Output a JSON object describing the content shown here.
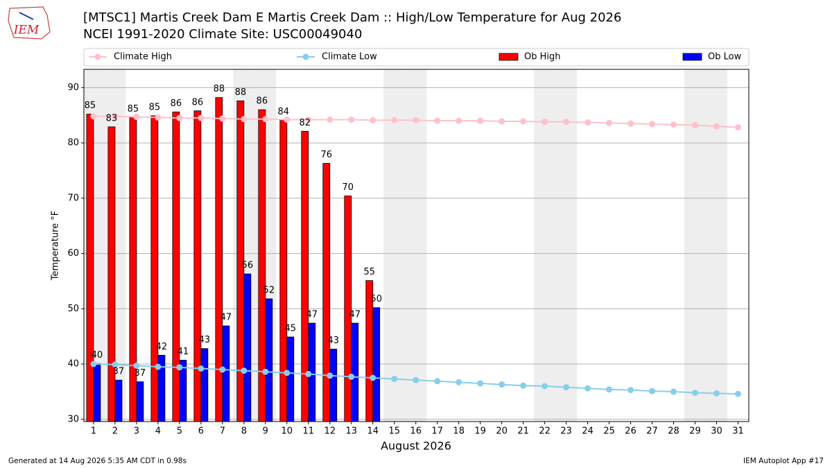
{
  "logo_text": "IEM",
  "footer_left": "Generated at 14 Aug 2026 5:35 AM CDT in 0.98s",
  "footer_right": "IEM Autoplot App #17",
  "chart_data": {
    "type": "bar_line",
    "title": "[MTSC1] Martis Creek Dam  E Martis Creek Dam :: High/Low Temperature for Aug 2026",
    "subtitle": "NCEI 1991-2020 Climate Site: USC00049040",
    "xlabel": "August 2026",
    "ylabel": "Temperature °F",
    "xlim": [
      0.55,
      31.5
    ],
    "xticks": [
      1,
      2,
      3,
      4,
      5,
      6,
      7,
      8,
      9,
      10,
      11,
      12,
      13,
      14,
      15,
      16,
      17,
      18,
      19,
      20,
      21,
      22,
      23,
      24,
      25,
      26,
      27,
      28,
      29,
      30,
      31
    ],
    "ylim": [
      29.6,
      93.3
    ],
    "yticks": [
      30,
      40,
      50,
      60,
      70,
      80,
      90
    ],
    "grid": true,
    "shaded_x": [
      1,
      2,
      8,
      9,
      15,
      16,
      22,
      23,
      29,
      30
    ],
    "shade_color": "#eeeeee",
    "series": [
      {
        "name": "Climate High",
        "kind": "line",
        "color": "#ffc0cb",
        "x": [
          1,
          2,
          3,
          4,
          5,
          6,
          7,
          8,
          9,
          10,
          11,
          12,
          13,
          14,
          15,
          16,
          17,
          18,
          19,
          20,
          21,
          22,
          23,
          24,
          25,
          26,
          27,
          28,
          29,
          30,
          31
        ],
        "values": [
          84.8,
          84.8,
          84.7,
          84.6,
          84.5,
          84.5,
          84.4,
          84.3,
          84.3,
          84.2,
          84.2,
          84.2,
          84.2,
          84.1,
          84.1,
          84.1,
          84.0,
          84.0,
          84.0,
          83.9,
          83.9,
          83.8,
          83.8,
          83.7,
          83.6,
          83.5,
          83.4,
          83.3,
          83.2,
          83.0,
          82.8
        ]
      },
      {
        "name": "Climate Low",
        "kind": "line",
        "color": "#87ceeb",
        "x": [
          1,
          2,
          3,
          4,
          5,
          6,
          7,
          8,
          9,
          10,
          11,
          12,
          13,
          14,
          15,
          16,
          17,
          18,
          19,
          20,
          21,
          22,
          23,
          24,
          25,
          26,
          27,
          28,
          29,
          30,
          31
        ],
        "values": [
          40.0,
          39.9,
          39.7,
          39.5,
          39.4,
          39.2,
          39.0,
          38.8,
          38.6,
          38.4,
          38.2,
          37.9,
          37.7,
          37.5,
          37.3,
          37.1,
          36.9,
          36.7,
          36.5,
          36.3,
          36.1,
          36.0,
          35.8,
          35.6,
          35.4,
          35.3,
          35.1,
          35.0,
          34.8,
          34.7,
          34.6
        ]
      },
      {
        "name": "Ob High",
        "kind": "bar",
        "color": "#ff0000",
        "x": [
          1,
          2,
          3,
          4,
          5,
          6,
          7,
          8,
          9,
          10,
          11,
          12,
          13,
          14
        ],
        "values": [
          85.2,
          82.9,
          84.6,
          84.9,
          85.6,
          85.8,
          88.2,
          87.6,
          86.0,
          84.1,
          82.1,
          76.3,
          70.4,
          55.1
        ],
        "value_labels": [
          "85",
          "83",
          "85",
          "85",
          "86",
          "86",
          "88",
          "88",
          "86",
          "84",
          "82",
          "76",
          "70",
          "55"
        ]
      },
      {
        "name": "Ob Low",
        "kind": "bar",
        "color": "#0000ff",
        "x": [
          1,
          2,
          3,
          4,
          5,
          6,
          7,
          8,
          9,
          10,
          11,
          12,
          13,
          14
        ],
        "values": [
          40.1,
          37.1,
          36.8,
          41.6,
          40.7,
          42.8,
          46.9,
          56.3,
          51.8,
          44.9,
          47.4,
          42.7,
          47.4,
          50.2
        ],
        "value_labels": [
          "40",
          "37",
          "37",
          "42",
          "41",
          "43",
          "47",
          "56",
          "52",
          "45",
          "47",
          "43",
          "47",
          "50"
        ]
      }
    ]
  }
}
